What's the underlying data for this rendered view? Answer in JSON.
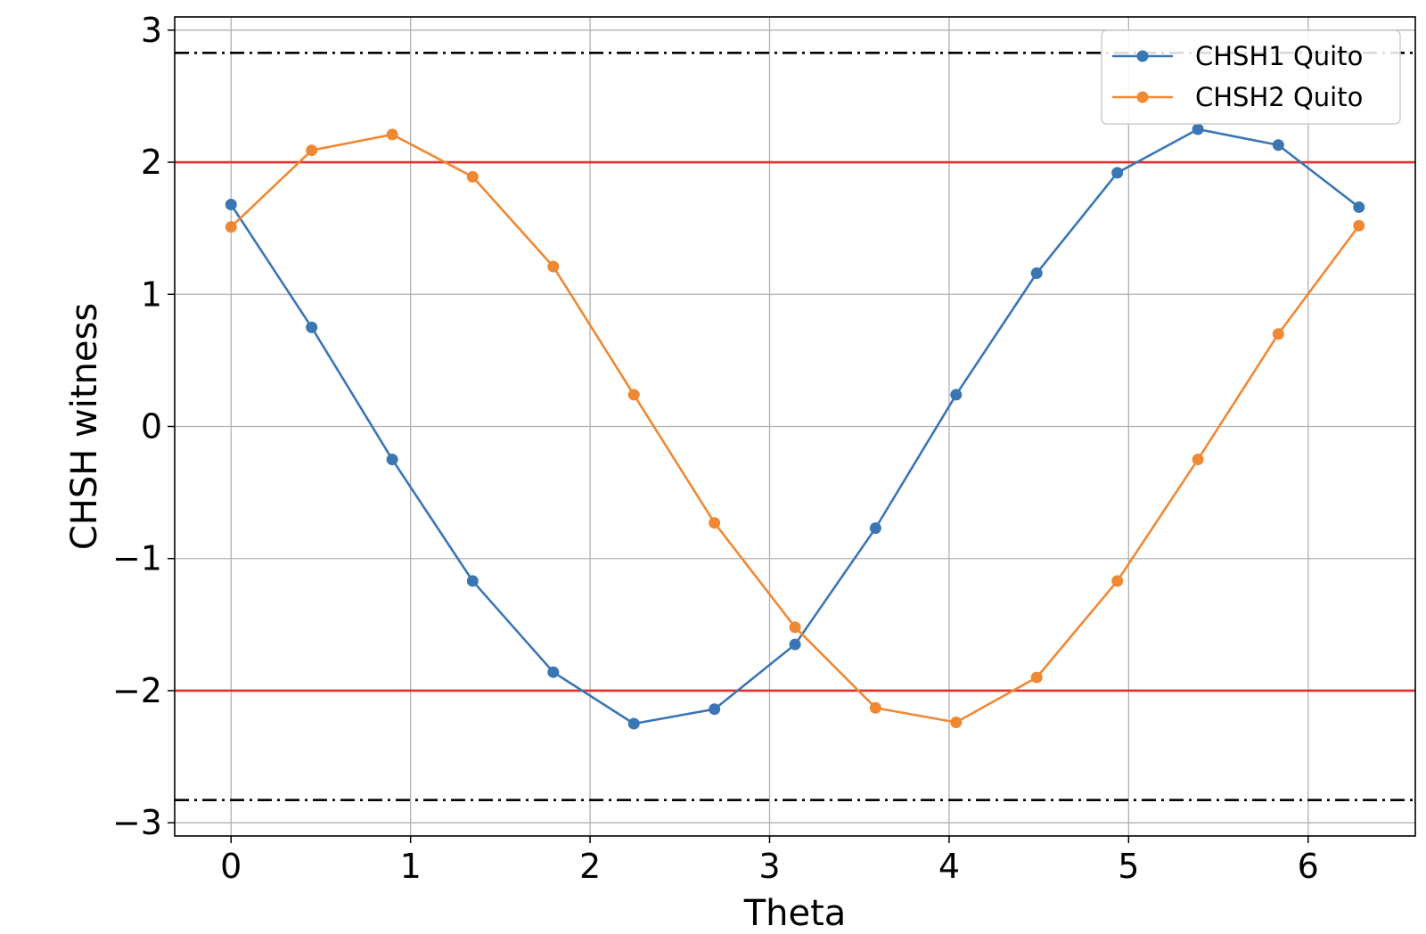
{
  "chart_data": {
    "type": "line",
    "xlabel": "Theta",
    "ylabel": "CHSH witness",
    "xlim": [
      -0.314,
      6.597
    ],
    "ylim": [
      -3.1,
      3.1
    ],
    "xticks": [
      0,
      1,
      2,
      3,
      4,
      5,
      6
    ],
    "yticks": [
      -3,
      -2,
      -1,
      0,
      1,
      2,
      3
    ],
    "xtick_labels": [
      "0",
      "1",
      "2",
      "3",
      "4",
      "5",
      "6"
    ],
    "ytick_labels": [
      "−3",
      "−2",
      "−1",
      "0",
      "1",
      "2",
      "3"
    ],
    "grid": true,
    "legend_position": "top-right",
    "x": [
      0,
      0.449,
      0.898,
      1.346,
      1.795,
      2.244,
      2.693,
      3.142,
      3.59,
      4.039,
      4.488,
      4.937,
      5.386,
      5.834,
      6.283
    ],
    "series": [
      {
        "name": "CHSH1 Quito",
        "color": "#3a76b4",
        "values": [
          1.68,
          0.75,
          -0.25,
          -1.17,
          -1.86,
          -2.25,
          -2.14,
          -1.65,
          -0.77,
          0.24,
          1.16,
          1.92,
          2.25,
          2.13,
          1.66
        ]
      },
      {
        "name": "CHSH2 Quito",
        "color": "#f08833",
        "values": [
          1.51,
          2.09,
          2.21,
          1.89,
          1.21,
          0.24,
          -0.73,
          -1.52,
          -2.13,
          -2.24,
          -1.9,
          -1.17,
          -0.25,
          0.7,
          1.52
        ]
      }
    ],
    "reference_lines": [
      {
        "y": 2,
        "color": "#e3302b",
        "style": "solid"
      },
      {
        "y": -2,
        "color": "#e3302b",
        "style": "solid"
      },
      {
        "y": 2.828,
        "color": "#000000",
        "style": "dashdot"
      },
      {
        "y": -2.828,
        "color": "#000000",
        "style": "dashdot"
      }
    ]
  }
}
